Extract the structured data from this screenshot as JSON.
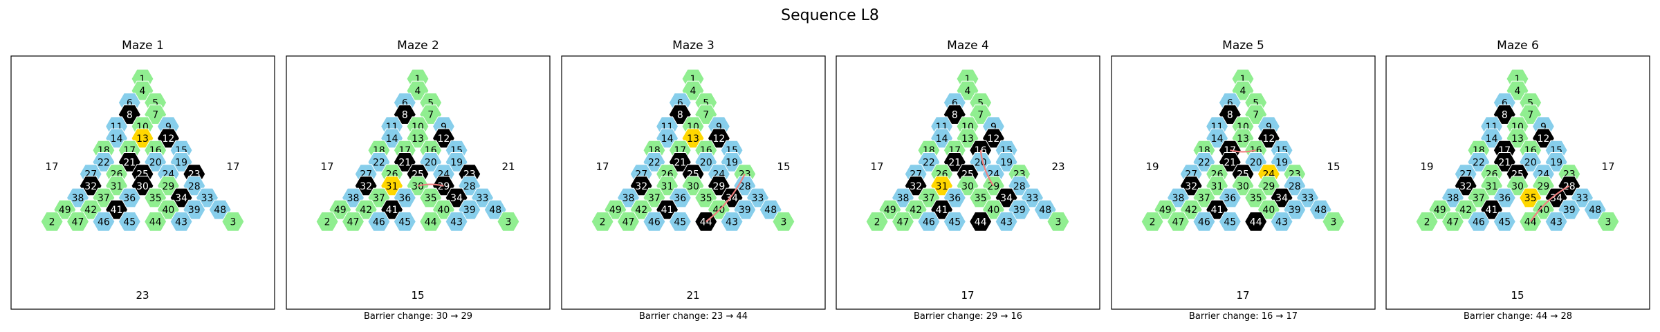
{
  "title": "Sequence L8",
  "colors": {
    "normal": "#90EE90",
    "blue": "#87CEEB",
    "black": "#000000",
    "current": "#FFD700",
    "path": "#F08080"
  },
  "blue_cells": [
    6,
    9,
    11,
    14,
    15,
    19,
    20,
    22,
    24,
    27,
    28,
    33,
    36,
    38,
    39,
    43,
    45,
    46,
    48
  ],
  "mazes": [
    {
      "title": "Maze 1",
      "caption": "",
      "current": 13,
      "blacks": [
        8,
        12,
        21,
        23,
        25,
        30,
        32,
        34,
        41
      ],
      "path": [],
      "left": "17",
      "right": "17",
      "bottom": "23"
    },
    {
      "title": "Maze 2",
      "caption": "Barrier change: 30 → 29",
      "current": 31,
      "blacks": [
        8,
        12,
        21,
        23,
        25,
        29,
        32,
        34,
        41
      ],
      "path": [
        30,
        29
      ],
      "left": "17",
      "right": "21",
      "bottom": "15"
    },
    {
      "title": "Maze 3",
      "caption": "Barrier change: 23 → 44",
      "current": 13,
      "blacks": [
        8,
        12,
        21,
        25,
        29,
        32,
        34,
        41,
        44
      ],
      "path": [
        23,
        44
      ],
      "left": "17",
      "right": "15",
      "bottom": "21"
    },
    {
      "title": "Maze 4",
      "caption": "Barrier change: 29 → 16",
      "current": 31,
      "blacks": [
        8,
        12,
        16,
        21,
        25,
        32,
        34,
        41,
        44
      ],
      "path": [
        29,
        16
      ],
      "left": "17",
      "right": "23",
      "bottom": "17"
    },
    {
      "title": "Maze 5",
      "caption": "Barrier change: 16 → 17",
      "current": 24,
      "blacks": [
        8,
        12,
        17,
        21,
        25,
        32,
        34,
        41,
        44
      ],
      "path": [
        16,
        17
      ],
      "left": "19",
      "right": "15",
      "bottom": "17"
    },
    {
      "title": "Maze 6",
      "caption": "Barrier change: 44 → 28",
      "current": 35,
      "blacks": [
        8,
        12,
        17,
        21,
        25,
        28,
        32,
        34,
        41
      ],
      "path": [
        44,
        28
      ],
      "left": "19",
      "right": "17",
      "bottom": "15"
    }
  ]
}
